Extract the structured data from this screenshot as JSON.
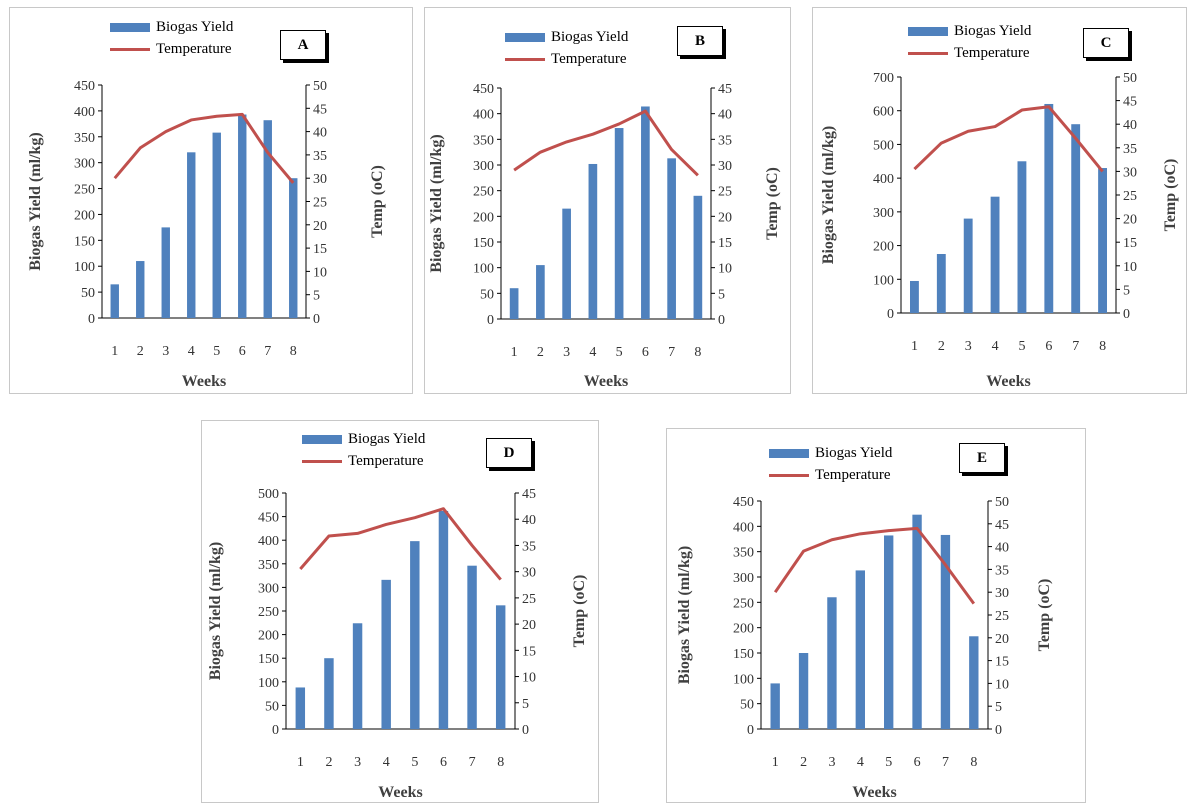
{
  "legend": {
    "bar_label": "Biogas Yield",
    "line_label": "Temperature"
  },
  "colors": {
    "bar": "#4f81bd",
    "line": "#c0504d",
    "axis": "#000000"
  },
  "chart_data": [
    {
      "id": "A",
      "type": "bar",
      "letter": "A",
      "categories": [
        "1",
        "2",
        "3",
        "4",
        "5",
        "6",
        "7",
        "8"
      ],
      "xlabel": "Weeks",
      "ylabel": "Biogas Yield (ml/kg)",
      "y2label": "Temp (oC)",
      "ylim": [
        0,
        450
      ],
      "yticks": [
        0,
        50,
        100,
        150,
        200,
        250,
        300,
        350,
        400,
        450
      ],
      "y2lim": [
        0,
        50
      ],
      "y2ticks": [
        0,
        5,
        10,
        15,
        20,
        25,
        30,
        35,
        40,
        45,
        50
      ],
      "series": [
        {
          "name": "Biogas Yield",
          "type": "bar",
          "axis": "left",
          "values": [
            65,
            110,
            175,
            320,
            358,
            393,
            382,
            270
          ]
        },
        {
          "name": "Temperature",
          "type": "line",
          "axis": "right",
          "values": [
            30,
            36.5,
            40,
            42.5,
            43.3,
            43.7,
            35.5,
            29
          ]
        }
      ]
    },
    {
      "id": "B",
      "type": "bar",
      "letter": "B",
      "categories": [
        "1",
        "2",
        "3",
        "4",
        "5",
        "6",
        "7",
        "8"
      ],
      "xlabel": "Weeks",
      "ylabel": "Biogas Yield (ml/kg)",
      "y2label": "Temp (oC)",
      "ylim": [
        0,
        450
      ],
      "yticks": [
        0,
        50,
        100,
        150,
        200,
        250,
        300,
        350,
        400,
        450
      ],
      "y2lim": [
        0,
        45
      ],
      "y2ticks": [
        0,
        5,
        10,
        15,
        20,
        25,
        30,
        35,
        40,
        45
      ],
      "series": [
        {
          "name": "Biogas Yield",
          "type": "bar",
          "axis": "left",
          "values": [
            60,
            105,
            215,
            302,
            372,
            414,
            313,
            240
          ]
        },
        {
          "name": "Temperature",
          "type": "line",
          "axis": "right",
          "values": [
            29,
            32.5,
            34.5,
            36,
            38,
            40.5,
            33,
            28
          ]
        }
      ]
    },
    {
      "id": "C",
      "type": "bar",
      "letter": "C",
      "categories": [
        "1",
        "2",
        "3",
        "4",
        "5",
        "6",
        "7",
        "8"
      ],
      "xlabel": "Weeks",
      "ylabel": "Biogas Yield (ml/kg)",
      "y2label": "Temp (oC)",
      "ylim": [
        0,
        700
      ],
      "yticks": [
        0,
        100,
        200,
        300,
        400,
        500,
        600,
        700
      ],
      "y2lim": [
        0,
        50
      ],
      "y2ticks": [
        0,
        5,
        10,
        15,
        20,
        25,
        30,
        35,
        40,
        45,
        50
      ],
      "series": [
        {
          "name": "Biogas Yield",
          "type": "bar",
          "axis": "left",
          "values": [
            95,
            175,
            280,
            345,
            450,
            620,
            560,
            430
          ]
        },
        {
          "name": "Temperature",
          "type": "line",
          "axis": "right",
          "values": [
            30.5,
            36,
            38.5,
            39.5,
            43,
            43.7,
            37,
            30
          ]
        }
      ]
    },
    {
      "id": "D",
      "type": "bar",
      "letter": "D",
      "categories": [
        "1",
        "2",
        "3",
        "4",
        "5",
        "6",
        "7",
        "8"
      ],
      "xlabel": "Weeks",
      "ylabel": "Biogas Yield (ml/kg)",
      "y2label": "Temp (oC)",
      "ylim": [
        0,
        500
      ],
      "yticks": [
        0,
        50,
        100,
        150,
        200,
        250,
        300,
        350,
        400,
        450,
        500
      ],
      "y2lim": [
        0,
        45
      ],
      "y2ticks": [
        0,
        5,
        10,
        15,
        20,
        25,
        30,
        35,
        40,
        45
      ],
      "series": [
        {
          "name": "Biogas Yield",
          "type": "bar",
          "axis": "left",
          "values": [
            88,
            150,
            224,
            316,
            398,
            462,
            346,
            262
          ]
        },
        {
          "name": "Temperature",
          "type": "line",
          "axis": "right",
          "values": [
            30.5,
            36.8,
            37.3,
            39,
            40.3,
            42,
            35,
            28.5
          ]
        }
      ]
    },
    {
      "id": "E",
      "type": "bar",
      "letter": "E",
      "categories": [
        "1",
        "2",
        "3",
        "4",
        "5",
        "6",
        "7",
        "8"
      ],
      "xlabel": "Weeks",
      "ylabel": "Biogas Yield (ml/kg)",
      "y2label": "Temp (oC)",
      "ylim": [
        0,
        450
      ],
      "yticks": [
        0,
        50,
        100,
        150,
        200,
        250,
        300,
        350,
        400,
        450
      ],
      "y2lim": [
        0,
        50
      ],
      "y2ticks": [
        0,
        5,
        10,
        15,
        20,
        25,
        30,
        35,
        40,
        45,
        50
      ],
      "series": [
        {
          "name": "Biogas Yield",
          "type": "bar",
          "axis": "left",
          "values": [
            90,
            150,
            260,
            313,
            382,
            423,
            383,
            183
          ]
        },
        {
          "name": "Temperature",
          "type": "line",
          "axis": "right",
          "values": [
            30,
            39,
            41.5,
            42.8,
            43.5,
            44,
            36,
            27.5
          ]
        }
      ]
    }
  ]
}
